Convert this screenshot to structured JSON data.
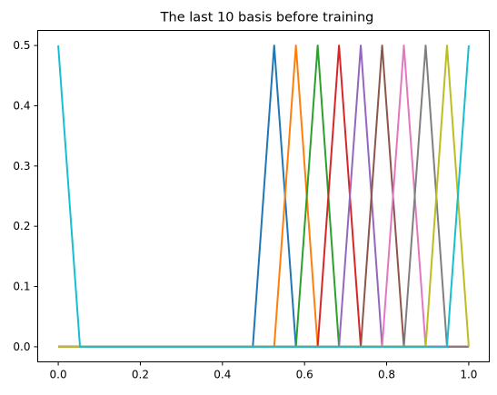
{
  "chart_data": {
    "type": "line",
    "title": "The last 10 basis before training",
    "xlabel": "",
    "ylabel": "",
    "xlim": [
      -0.05,
      1.05
    ],
    "ylim": [
      -0.025,
      0.525
    ],
    "xticks": [
      0.0,
      0.2,
      0.4,
      0.6,
      0.8,
      1.0
    ],
    "xtick_labels": [
      "0.0",
      "0.2",
      "0.4",
      "0.6",
      "0.8",
      "1.0"
    ],
    "yticks": [
      0.0,
      0.1,
      0.2,
      0.3,
      0.4,
      0.5
    ],
    "ytick_labels": [
      "0.0",
      "0.1",
      "0.2",
      "0.3",
      "0.4",
      "0.5"
    ],
    "grid": false,
    "legend": "none",
    "series": [
      {
        "color": "#1f77b4",
        "x": [
          0.0,
          0.474,
          0.526,
          0.579,
          1.0
        ],
        "y": [
          0,
          0,
          0.5,
          0,
          0
        ]
      },
      {
        "color": "#ff7f0e",
        "x": [
          0.0,
          0.526,
          0.579,
          0.632,
          1.0
        ],
        "y": [
          0,
          0,
          0.5,
          0,
          0
        ]
      },
      {
        "color": "#2ca02c",
        "x": [
          0.0,
          0.579,
          0.632,
          0.684,
          1.0
        ],
        "y": [
          0,
          0,
          0.5,
          0,
          0
        ]
      },
      {
        "color": "#d62728",
        "x": [
          0.0,
          0.632,
          0.684,
          0.737,
          1.0
        ],
        "y": [
          0,
          0,
          0.5,
          0,
          0
        ]
      },
      {
        "color": "#9467bd",
        "x": [
          0.0,
          0.684,
          0.737,
          0.789,
          1.0
        ],
        "y": [
          0,
          0,
          0.5,
          0,
          0
        ]
      },
      {
        "color": "#8c564b",
        "x": [
          0.0,
          0.737,
          0.789,
          0.842,
          1.0
        ],
        "y": [
          0,
          0,
          0.5,
          0,
          0
        ]
      },
      {
        "color": "#e377c2",
        "x": [
          0.0,
          0.789,
          0.842,
          0.895,
          1.0
        ],
        "y": [
          0,
          0,
          0.5,
          0,
          0
        ]
      },
      {
        "color": "#7f7f7f",
        "x": [
          0.0,
          0.842,
          0.895,
          0.947,
          1.0
        ],
        "y": [
          0,
          0,
          0.5,
          0,
          0
        ]
      },
      {
        "color": "#bcbd22",
        "x": [
          0.0,
          0.895,
          0.947,
          1.0
        ],
        "y": [
          0,
          0,
          0.5,
          0
        ]
      },
      {
        "color": "#17becf",
        "x": [
          0.0,
          0.053,
          0.947,
          1.0
        ],
        "y": [
          0.5,
          0,
          0,
          0.5
        ]
      }
    ]
  }
}
